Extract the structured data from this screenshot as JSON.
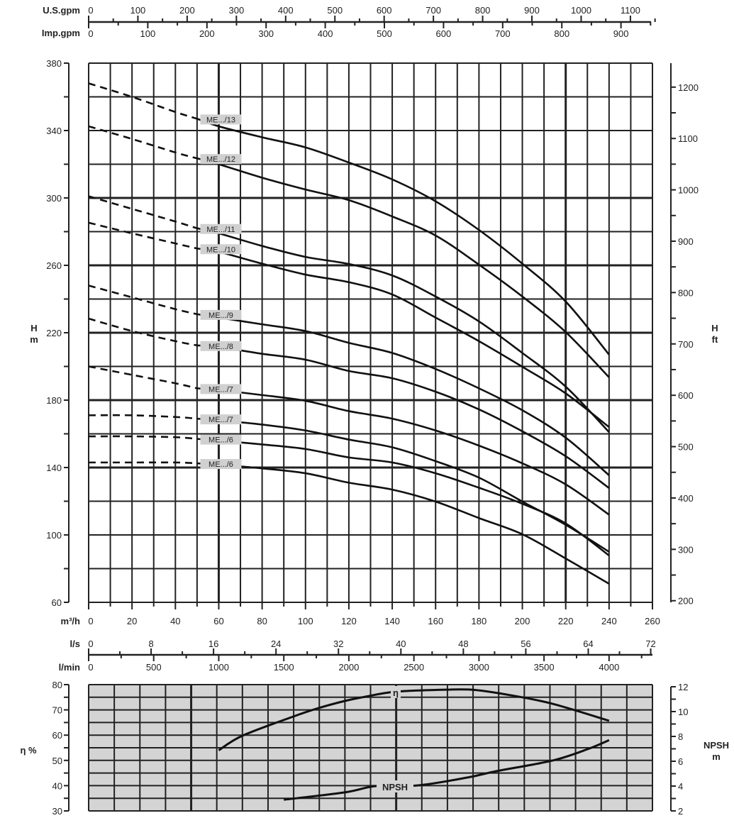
{
  "chart_data": [
    {
      "type": "line",
      "title": "",
      "xlabel": "m³/h",
      "ylabel": "H m",
      "y2label": "H ft",
      "xlim": [
        0,
        260
      ],
      "ylim": [
        60,
        380
      ],
      "y2lim": [
        200,
        1200
      ],
      "grid": true,
      "x_ticks": [
        0,
        20,
        40,
        60,
        80,
        100,
        120,
        140,
        160,
        180,
        200,
        220,
        240,
        260
      ],
      "y_ticks": [
        60,
        100,
        140,
        180,
        220,
        260,
        300,
        340,
        380
      ],
      "y2_ticks": [
        200,
        300,
        400,
        500,
        600,
        700,
        800,
        900,
        1000,
        1100,
        1200
      ],
      "secondary_x_axes": [
        {
          "label": "U.S.gpm",
          "ticks": [
            0,
            100,
            200,
            300,
            400,
            500,
            600,
            700,
            800,
            900,
            1000,
            1100
          ]
        },
        {
          "label": "Imp.gpm",
          "ticks": [
            0,
            100,
            200,
            300,
            400,
            500,
            600,
            700,
            800,
            900
          ]
        },
        {
          "label": "l/s",
          "ticks": [
            0,
            8,
            16,
            24,
            32,
            40,
            48,
            56,
            64,
            72
          ]
        },
        {
          "label": "l/min",
          "ticks": [
            0,
            500,
            1000,
            1500,
            2000,
            2500,
            3000,
            3500,
            4000
          ]
        }
      ],
      "dashed_until_flow": 50,
      "x": [
        0,
        20,
        40,
        50,
        60,
        80,
        100,
        120,
        140,
        160,
        180,
        200,
        220,
        240
      ],
      "series": [
        {
          "name": "ME.../13",
          "values": [
            368,
            360,
            351,
            347,
            342.5,
            336,
            330,
            321,
            311,
            298,
            281,
            261,
            238.5,
            207
          ]
        },
        {
          "name": "ME.../12",
          "values": [
            342.5,
            335,
            327,
            323.5,
            320,
            312,
            305,
            298.7,
            289,
            277.7,
            260.4,
            241.5,
            220.4,
            193.5
          ]
        },
        {
          "name": "ME.../11",
          "values": [
            301,
            293.5,
            286,
            282,
            279,
            271.5,
            265,
            260.8,
            254,
            241.5,
            226.7,
            208,
            188,
            161
          ]
        },
        {
          "name": "ME.../10",
          "values": [
            285.3,
            279,
            273,
            270,
            268,
            261,
            254.5,
            250,
            242.7,
            229,
            215,
            199.8,
            184,
            164
          ]
        },
        {
          "name": "ME.../9",
          "values": [
            248,
            241,
            234,
            231,
            229,
            225,
            221,
            214,
            208,
            198.5,
            187,
            174,
            157.7,
            135.4
          ]
        },
        {
          "name": "ME.../8",
          "values": [
            228.4,
            221,
            215,
            212.5,
            211.5,
            207.5,
            204,
            197.3,
            193,
            185,
            174.5,
            161.5,
            146.7,
            127.8
          ]
        },
        {
          "name": "ME.../7",
          "values": [
            200,
            195,
            190,
            187,
            186,
            183,
            179.6,
            173.5,
            169,
            162,
            153,
            142.5,
            130,
            112
          ]
        },
        {
          "name": "ME.../7",
          "values": [
            171,
            171,
            170,
            169,
            168,
            165.5,
            162,
            156.6,
            152,
            143.8,
            134,
            119.8,
            106,
            90
          ]
        },
        {
          "name": "ME.../6",
          "values": [
            158.5,
            158.5,
            158,
            157,
            156,
            153.7,
            151,
            146,
            143,
            136.6,
            128,
            118.5,
            106.8,
            87.8
          ]
        },
        {
          "name": "ME.../6",
          "values": [
            143,
            143,
            143,
            142.5,
            141.7,
            139.5,
            136.6,
            131,
            126.9,
            119.8,
            110,
            100.4,
            86,
            71
          ]
        }
      ]
    },
    {
      "type": "line",
      "title": "",
      "ylabel": "η %",
      "y2label": "NPSH m",
      "xlim": [
        0,
        260
      ],
      "ylim": [
        30,
        80
      ],
      "y2lim": [
        2,
        12
      ],
      "grid": true,
      "y_ticks": [
        30,
        40,
        50,
        60,
        70,
        80
      ],
      "y2_ticks": [
        2,
        4,
        6,
        8,
        10,
        12
      ],
      "series": [
        {
          "name": "η",
          "axis": "left",
          "x": [
            60,
            71,
            94.5,
            106,
            118,
            127.5,
            141.6,
            165,
            178,
            194.6,
            214,
            240
          ],
          "values": [
            54,
            59.8,
            67.4,
            70.7,
            73.5,
            75.2,
            77.2,
            78,
            77.9,
            75.8,
            72.4,
            65.7
          ]
        },
        {
          "name": "NPSH",
          "axis": "right",
          "x": [
            90,
            118.4,
            132.4,
            152,
            175,
            188,
            214,
            230.5,
            240
          ],
          "values": [
            2.9,
            3.5,
            4.0,
            4.06,
            4.7,
            5.2,
            6.06,
            7.0,
            7.7
          ]
        }
      ]
    }
  ],
  "labels": {
    "h": "H",
    "m": "m",
    "ft": "ft",
    "eff": "η %",
    "npsh": "NPSH",
    "npsh_unit": "m",
    "us_gpm": "U.S.gpm",
    "imp_gpm": "Imp.gpm",
    "m3h": "m³/h",
    "ls": "l/s",
    "lmin": "l/min"
  }
}
